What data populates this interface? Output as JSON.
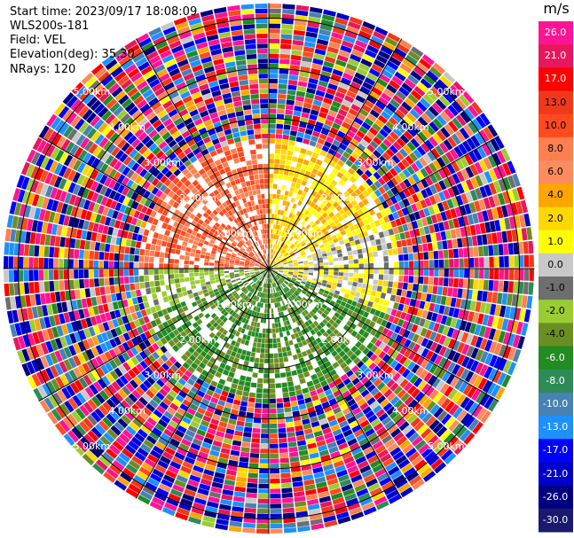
{
  "info": {
    "start_time": "Start time: 2023/09/17 18:08:09",
    "instrument": "WLS200s-181",
    "field": "Field: VEL",
    "elevation": "Elevation(deg): 35.30",
    "nrays": "NRays: 120"
  },
  "colorbar": {
    "unit": "m/s",
    "ticks": [
      "26.0",
      "21.0",
      "17.0",
      "13.0",
      "10.0",
      "8.0",
      "6.0",
      "4.0",
      "2.0",
      "1.0",
      "0.0",
      "-1.0",
      "-2.0",
      "-4.0",
      "-6.0",
      "-8.0",
      "-10.0",
      "-13.0",
      "-17.0",
      "-21.0",
      "-26.0",
      "-30.0"
    ],
    "colors": [
      "#ff1493",
      "#e8175d",
      "#ff0000",
      "#f0381b",
      "#ff4a20",
      "#ff7f50",
      "#fa8c5e",
      "#ffa500",
      "#ffd700",
      "#ffff00",
      "#c8c8c8",
      "#6e6e6e",
      "#9acd32",
      "#6b8e23",
      "#228b22",
      "#2e8b57",
      "#4682b4",
      "#1e90ff",
      "#0000ff",
      "#0000cd",
      "#000080",
      "#191970"
    ]
  },
  "chart_data": {
    "type": "heatmap",
    "description_free": true,
    "field": "VEL",
    "elevation_deg": 35.3,
    "nrays": 120,
    "range_rings_km": [
      1.0,
      2.0,
      3.0,
      4.0,
      5.0
    ],
    "ring_labels": [
      "1.00km",
      "2.00km",
      "3.00km",
      "4.00km",
      "5.00km"
    ],
    "max_range_km": 5.3,
    "value_range": [
      -30.0,
      26.0
    ],
    "pattern": {
      "inner_core_km": 2.6,
      "northwest_quadrant_ms": 8.0,
      "northeast_quadrant_ms": 1.5,
      "east_ms": 0.0,
      "south_ms": -6.0,
      "southwest_ms": -3.0,
      "outer_region": "noise"
    }
  }
}
